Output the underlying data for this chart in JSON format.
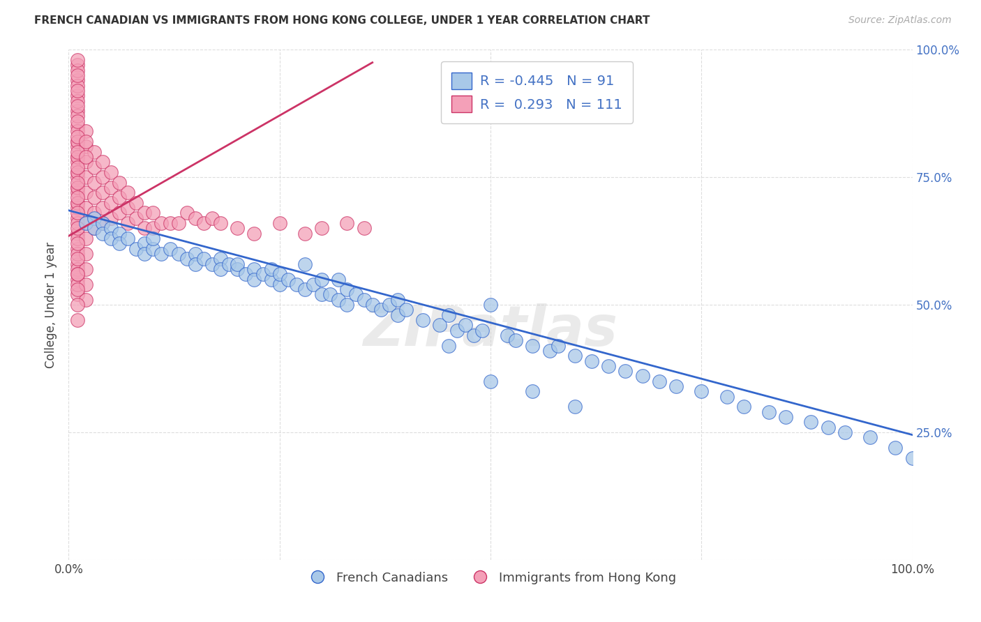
{
  "title": "FRENCH CANADIAN VS IMMIGRANTS FROM HONG KONG COLLEGE, UNDER 1 YEAR CORRELATION CHART",
  "source": "Source: ZipAtlas.com",
  "ylabel": "College, Under 1 year",
  "legend_blue_r": "-0.445",
  "legend_blue_n": "91",
  "legend_pink_r": "0.293",
  "legend_pink_n": "111",
  "legend_blue_label": "French Canadians",
  "legend_pink_label": "Immigrants from Hong Kong",
  "watermark": "ZIPatlas",
  "blue_color": "#a8c8e8",
  "pink_color": "#f4a0b8",
  "blue_line_color": "#3366cc",
  "pink_line_color": "#cc3366",
  "background_color": "#ffffff",
  "grid_color": "#dddddd",
  "blue_line_y0": 0.685,
  "blue_line_y1": 0.245,
  "pink_line_x0": 0.0,
  "pink_line_x1": 0.36,
  "pink_line_y0": 0.635,
  "pink_line_y1": 0.975,
  "xlim": [
    0.0,
    1.0
  ],
  "ylim": [
    0.0,
    1.0
  ],
  "blue_x": [
    0.02,
    0.03,
    0.03,
    0.04,
    0.04,
    0.05,
    0.05,
    0.06,
    0.06,
    0.07,
    0.08,
    0.09,
    0.09,
    0.1,
    0.1,
    0.11,
    0.12,
    0.13,
    0.14,
    0.15,
    0.15,
    0.16,
    0.17,
    0.18,
    0.18,
    0.19,
    0.2,
    0.2,
    0.21,
    0.22,
    0.22,
    0.23,
    0.24,
    0.24,
    0.25,
    0.25,
    0.26,
    0.27,
    0.28,
    0.29,
    0.3,
    0.3,
    0.31,
    0.32,
    0.33,
    0.33,
    0.34,
    0.35,
    0.36,
    0.37,
    0.38,
    0.39,
    0.39,
    0.4,
    0.42,
    0.44,
    0.45,
    0.46,
    0.47,
    0.48,
    0.49,
    0.5,
    0.52,
    0.53,
    0.55,
    0.57,
    0.58,
    0.6,
    0.62,
    0.64,
    0.66,
    0.68,
    0.7,
    0.72,
    0.75,
    0.78,
    0.8,
    0.83,
    0.85,
    0.88,
    0.9,
    0.92,
    0.95,
    0.98,
    1.0,
    0.28,
    0.32,
    0.45,
    0.5,
    0.55,
    0.6
  ],
  "blue_y": [
    0.66,
    0.67,
    0.65,
    0.66,
    0.64,
    0.65,
    0.63,
    0.64,
    0.62,
    0.63,
    0.61,
    0.62,
    0.6,
    0.61,
    0.63,
    0.6,
    0.61,
    0.6,
    0.59,
    0.6,
    0.58,
    0.59,
    0.58,
    0.59,
    0.57,
    0.58,
    0.57,
    0.58,
    0.56,
    0.57,
    0.55,
    0.56,
    0.55,
    0.57,
    0.54,
    0.56,
    0.55,
    0.54,
    0.53,
    0.54,
    0.52,
    0.55,
    0.52,
    0.51,
    0.53,
    0.5,
    0.52,
    0.51,
    0.5,
    0.49,
    0.5,
    0.48,
    0.51,
    0.49,
    0.47,
    0.46,
    0.48,
    0.45,
    0.46,
    0.44,
    0.45,
    0.5,
    0.44,
    0.43,
    0.42,
    0.41,
    0.42,
    0.4,
    0.39,
    0.38,
    0.37,
    0.36,
    0.35,
    0.34,
    0.33,
    0.32,
    0.3,
    0.29,
    0.28,
    0.27,
    0.26,
    0.25,
    0.24,
    0.22,
    0.2,
    0.58,
    0.55,
    0.42,
    0.35,
    0.33,
    0.3
  ],
  "pink_x": [
    0.01,
    0.01,
    0.01,
    0.01,
    0.01,
    0.01,
    0.01,
    0.01,
    0.01,
    0.01,
    0.01,
    0.01,
    0.01,
    0.01,
    0.01,
    0.01,
    0.01,
    0.01,
    0.01,
    0.01,
    0.01,
    0.01,
    0.01,
    0.01,
    0.01,
    0.01,
    0.01,
    0.01,
    0.01,
    0.01,
    0.01,
    0.01,
    0.01,
    0.01,
    0.01,
    0.01,
    0.01,
    0.02,
    0.02,
    0.02,
    0.02,
    0.02,
    0.02,
    0.02,
    0.02,
    0.02,
    0.02,
    0.02,
    0.02,
    0.03,
    0.03,
    0.03,
    0.03,
    0.03,
    0.03,
    0.04,
    0.04,
    0.04,
    0.04,
    0.04,
    0.05,
    0.05,
    0.05,
    0.05,
    0.06,
    0.06,
    0.06,
    0.07,
    0.07,
    0.07,
    0.08,
    0.08,
    0.09,
    0.09,
    0.1,
    0.1,
    0.11,
    0.12,
    0.13,
    0.14,
    0.15,
    0.16,
    0.17,
    0.18,
    0.2,
    0.22,
    0.25,
    0.28,
    0.3,
    0.33,
    0.35,
    0.01,
    0.01,
    0.01,
    0.01,
    0.01,
    0.01,
    0.01,
    0.01,
    0.01,
    0.01,
    0.01,
    0.01,
    0.01,
    0.01,
    0.01,
    0.01,
    0.01,
    0.01,
    0.02,
    0.02
  ],
  "pink_y": [
    0.97,
    0.94,
    0.91,
    0.88,
    0.85,
    0.82,
    0.79,
    0.76,
    0.73,
    0.7,
    0.67,
    0.64,
    0.61,
    0.58,
    0.55,
    0.52,
    0.96,
    0.93,
    0.9,
    0.87,
    0.84,
    0.81,
    0.78,
    0.75,
    0.72,
    0.69,
    0.66,
    0.63,
    0.6,
    0.57,
    0.54,
    0.82,
    0.79,
    0.76,
    0.73,
    0.7,
    0.56,
    0.84,
    0.81,
    0.78,
    0.75,
    0.72,
    0.69,
    0.66,
    0.63,
    0.6,
    0.57,
    0.54,
    0.51,
    0.8,
    0.77,
    0.74,
    0.71,
    0.68,
    0.65,
    0.78,
    0.75,
    0.72,
    0.69,
    0.66,
    0.76,
    0.73,
    0.7,
    0.67,
    0.74,
    0.71,
    0.68,
    0.72,
    0.69,
    0.66,
    0.7,
    0.67,
    0.68,
    0.65,
    0.68,
    0.65,
    0.66,
    0.66,
    0.66,
    0.68,
    0.67,
    0.66,
    0.67,
    0.66,
    0.65,
    0.64,
    0.66,
    0.64,
    0.65,
    0.66,
    0.65,
    0.98,
    0.95,
    0.92,
    0.89,
    0.86,
    0.83,
    0.8,
    0.77,
    0.74,
    0.71,
    0.68,
    0.65,
    0.62,
    0.59,
    0.56,
    0.53,
    0.5,
    0.47,
    0.82,
    0.79
  ]
}
